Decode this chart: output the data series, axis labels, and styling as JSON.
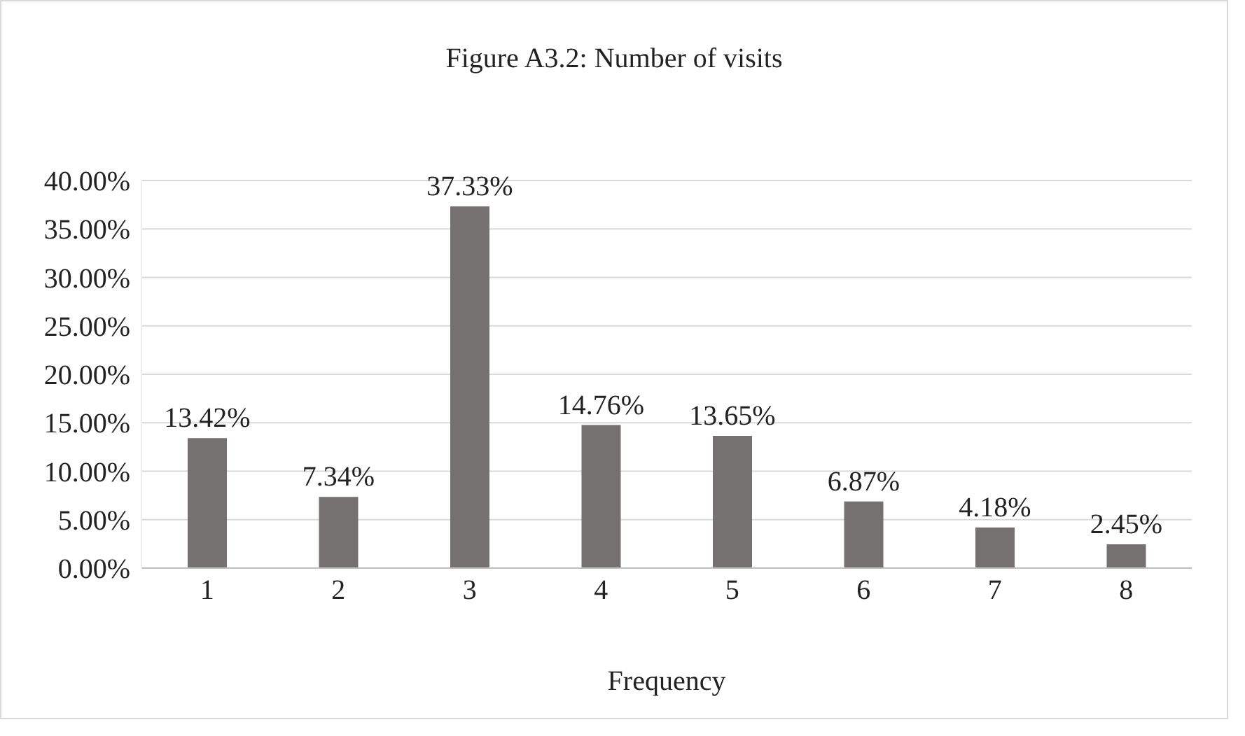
{
  "chart_data": {
    "type": "bar",
    "title": "Figure A3.2: Number of visits",
    "xlabel": "Frequency",
    "categories": [
      "1",
      "2",
      "3",
      "4",
      "5",
      "6",
      "7",
      "8"
    ],
    "values": [
      13.42,
      7.34,
      37.33,
      14.76,
      13.65,
      6.87,
      4.18,
      2.45
    ],
    "value_labels": [
      "13.42%",
      "7.34%",
      "37.33%",
      "14.76%",
      "13.65%",
      "6.87%",
      "4.18%",
      "2.45%"
    ],
    "color": "#767171",
    "ylim": [
      0,
      40
    ],
    "yticks": [
      {
        "value": 0,
        "label": "0.00%"
      },
      {
        "value": 5,
        "label": "5.00%"
      },
      {
        "value": 10,
        "label": "10.00%"
      },
      {
        "value": 15,
        "label": "15.00%"
      },
      {
        "value": 20,
        "label": "20.00%"
      },
      {
        "value": 25,
        "label": "25.00%"
      },
      {
        "value": 30,
        "label": "30.00%"
      },
      {
        "value": 35,
        "label": "35.00%"
      },
      {
        "value": 40,
        "label": "40.00%"
      }
    ],
    "grid": "y",
    "legend": false
  }
}
